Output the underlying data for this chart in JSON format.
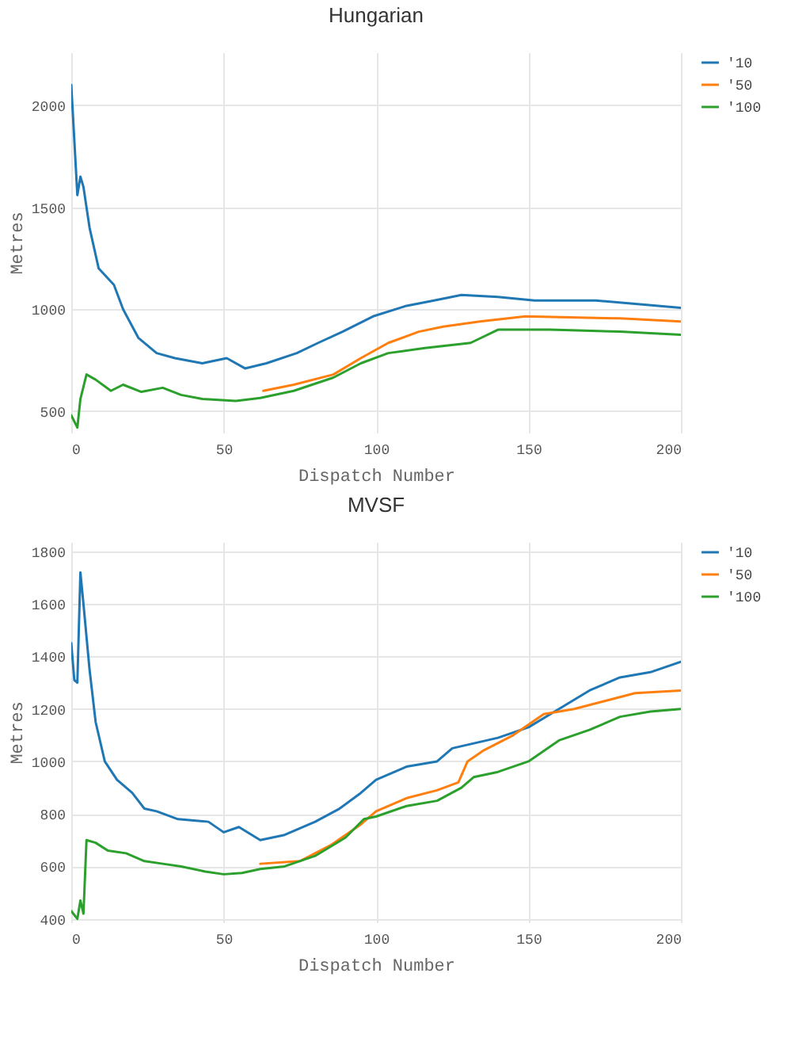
{
  "chart_data": [
    {
      "type": "line",
      "title": "Hungarian",
      "xlabel": "Dispatch Number",
      "ylabel": "Metres",
      "xlim": [
        0,
        200
      ],
      "xticks": [
        0,
        50,
        100,
        150,
        200
      ],
      "ylim": [
        395,
        2260
      ],
      "yticks": [
        500,
        1000,
        1500,
        2000
      ],
      "grid": true,
      "legend": "top right",
      "series": [
        {
          "name": "'10",
          "color": "#1f77b4",
          "x": [
            0,
            2,
            3,
            4,
            6,
            9,
            14,
            17,
            22,
            28,
            34,
            43,
            51,
            57,
            64,
            74,
            81,
            89,
            99,
            110,
            119,
            128,
            140,
            152,
            172,
            200
          ],
          "values": [
            2100,
            1560,
            1650,
            1600,
            1400,
            1200,
            1120,
            1000,
            860,
            785,
            760,
            735,
            760,
            710,
            735,
            785,
            835,
            890,
            965,
            1017,
            1043,
            1070,
            1060,
            1043,
            1043,
            1007
          ]
        },
        {
          "name": "'50",
          "color": "#ff7f0e",
          "x": [
            63,
            73,
            86,
            95,
            104,
            114,
            122,
            134,
            149,
            180,
            200
          ],
          "values": [
            600,
            630,
            680,
            760,
            835,
            890,
            915,
            940,
            965,
            955,
            940
          ]
        },
        {
          "name": "'100",
          "color": "#2ca02c",
          "x": [
            0,
            2,
            3,
            5,
            8,
            13,
            17,
            23,
            30,
            36,
            43,
            54,
            62,
            73,
            86,
            95,
            104,
            116,
            131,
            140,
            157,
            180,
            200
          ],
          "values": [
            480,
            420,
            560,
            680,
            655,
            600,
            630,
            595,
            615,
            580,
            560,
            550,
            565,
            600,
            665,
            735,
            785,
            810,
            835,
            900,
            900,
            890,
            875
          ]
        }
      ]
    },
    {
      "type": "line",
      "title": "MVSF",
      "xlabel": "Dispatch Number",
      "ylabel": "Metres",
      "xlim": [
        0,
        200
      ],
      "xticks": [
        0,
        50,
        100,
        150,
        200
      ],
      "ylim": [
        387,
        1836
      ],
      "yticks": [
        400,
        600,
        800,
        1000,
        1200,
        1400,
        1600,
        1800
      ],
      "grid": true,
      "legend": "top right",
      "series": [
        {
          "name": "'10",
          "color": "#1f77b4",
          "x": [
            0,
            1,
            2,
            3,
            4,
            6,
            8,
            11,
            15,
            20,
            24,
            28,
            35,
            45,
            50,
            55,
            62,
            70,
            80,
            88,
            95,
            100,
            110,
            120,
            125,
            140,
            150,
            160,
            170,
            180,
            190,
            200
          ],
          "values": [
            1450,
            1310,
            1300,
            1720,
            1600,
            1350,
            1150,
            1000,
            930,
            880,
            820,
            810,
            780,
            770,
            730,
            750,
            700,
            720,
            770,
            820,
            880,
            930,
            980,
            1000,
            1050,
            1090,
            1130,
            1200,
            1270,
            1320,
            1340,
            1380
          ]
        },
        {
          "name": "'50",
          "color": "#ff7f0e",
          "x": [
            62,
            75,
            85,
            95,
            100,
            110,
            120,
            127,
            130,
            135,
            145,
            155,
            165,
            175,
            185,
            200
          ],
          "values": [
            610,
            620,
            680,
            760,
            810,
            860,
            890,
            920,
            1000,
            1040,
            1100,
            1180,
            1200,
            1230,
            1260,
            1270
          ]
        },
        {
          "name": "'100",
          "color": "#2ca02c",
          "x": [
            0,
            2,
            3,
            4,
            5,
            8,
            12,
            18,
            24,
            30,
            36,
            44,
            50,
            56,
            62,
            70,
            80,
            90,
            96,
            100,
            110,
            120,
            128,
            132,
            140,
            150,
            160,
            170,
            180,
            190,
            200
          ],
          "values": [
            430,
            400,
            470,
            420,
            700,
            690,
            660,
            650,
            620,
            610,
            600,
            580,
            570,
            575,
            590,
            600,
            640,
            710,
            780,
            790,
            830,
            850,
            900,
            940,
            960,
            1000,
            1080,
            1120,
            1170,
            1190,
            1200
          ]
        }
      ]
    }
  ]
}
